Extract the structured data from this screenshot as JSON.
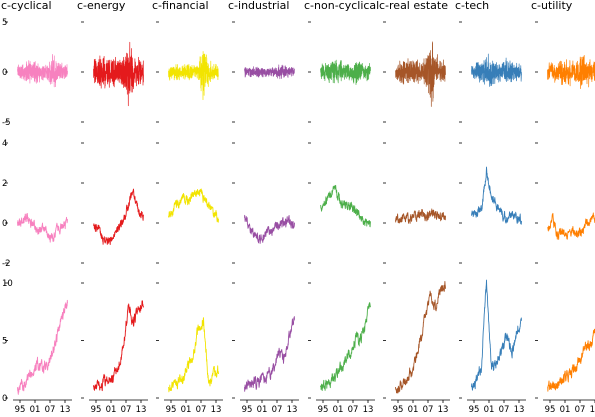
{
  "chart_data": {
    "type": "line",
    "grid": false,
    "legend": "none",
    "columns": [
      {
        "name": "c-cyclical",
        "color": "#f781bf"
      },
      {
        "name": "c-energy",
        "color": "#e41a1c"
      },
      {
        "name": "c-financial",
        "color": "#f2e400"
      },
      {
        "name": "c-industrial",
        "color": "#984ea3"
      },
      {
        "name": "c-non-cyclical",
        "color": "#4daf4a"
      },
      {
        "name": "c-real estate",
        "color": "#a65628"
      },
      {
        "name": "c-tech",
        "color": "#377eb8"
      },
      {
        "name": "c-utility",
        "color": "#ff7f00"
      }
    ],
    "rows": [
      {
        "ylim": [
          -5,
          5
        ],
        "yticks": [
          "5",
          "0",
          "-5"
        ]
      },
      {
        "ylim": [
          -2,
          4
        ],
        "yticks": [
          "4",
          "2",
          "0",
          "-2"
        ]
      },
      {
        "ylim": [
          0,
          10
        ],
        "yticks": [
          "10",
          "5",
          "0"
        ]
      }
    ],
    "xlim": [
      1993,
      2015
    ],
    "xticks": [
      "95",
      "01",
      "07",
      "13"
    ],
    "x": [
      1994,
      1996,
      1998,
      2000,
      2002,
      2004,
      2006,
      2008,
      2010,
      2012,
      2014
    ],
    "returns_amplitude": [
      [
        1.2,
        1.0,
        1.4,
        1.3,
        1.2,
        0.9,
        1.0,
        2.0,
        1.3,
        1.0,
        0.9
      ],
      [
        1.6,
        1.5,
        2.2,
        2.0,
        1.8,
        1.5,
        2.0,
        3.5,
        2.2,
        1.8,
        1.7
      ],
      [
        0.9,
        0.8,
        1.0,
        1.0,
        1.0,
        0.8,
        0.9,
        3.5,
        1.5,
        1.0,
        0.8
      ],
      [
        0.6,
        0.5,
        0.7,
        0.7,
        0.6,
        0.5,
        0.6,
        1.0,
        0.7,
        0.6,
        0.5
      ],
      [
        1.0,
        1.0,
        1.3,
        1.4,
        1.2,
        1.0,
        1.0,
        1.5,
        1.1,
        1.0,
        1.0
      ],
      [
        1.2,
        1.2,
        1.5,
        1.4,
        1.3,
        1.2,
        1.5,
        5.0,
        2.0,
        1.5,
        1.3
      ],
      [
        1.0,
        1.1,
        1.5,
        2.0,
        1.8,
        1.2,
        1.0,
        1.5,
        1.2,
        1.0,
        1.0
      ],
      [
        1.2,
        1.1,
        1.3,
        1.5,
        1.8,
        1.3,
        1.2,
        2.8,
        1.6,
        1.3,
        1.2
      ]
    ],
    "level": [
      [
        0.0,
        0.2,
        0.3,
        0.0,
        -0.4,
        -0.2,
        -0.5,
        -0.9,
        -0.3,
        -0.2,
        0.1
      ],
      [
        -0.2,
        -0.3,
        -0.9,
        -1.0,
        -0.6,
        -0.3,
        0.1,
        0.9,
        1.5,
        0.6,
        0.3
      ],
      [
        0.3,
        0.7,
        1.0,
        1.3,
        1.1,
        1.5,
        1.6,
        1.2,
        0.9,
        0.5,
        0.2
      ],
      [
        0.2,
        -0.2,
        -0.5,
        -0.8,
        -0.6,
        -0.4,
        -0.3,
        -0.1,
        0.0,
        0.0,
        0.0
      ],
      [
        0.8,
        1.1,
        1.5,
        1.6,
        1.0,
        0.9,
        0.8,
        0.6,
        0.3,
        0.1,
        0.0
      ],
      [
        0.1,
        0.2,
        0.3,
        0.2,
        0.3,
        0.5,
        0.3,
        0.5,
        0.4,
        0.3,
        0.4
      ],
      [
        0.3,
        0.5,
        0.7,
        2.6,
        1.2,
        0.9,
        0.5,
        0.2,
        0.4,
        0.3,
        0.1
      ],
      [
        -0.3,
        0.2,
        -0.6,
        -0.4,
        -0.6,
        -0.4,
        -0.6,
        -0.3,
        0.0,
        0.2,
        0.3
      ]
    ],
    "cumulative": [
      [
        0.8,
        1.0,
        1.5,
        2.2,
        3.0,
        2.5,
        2.8,
        4.0,
        5.5,
        7.0,
        8.5
      ],
      [
        0.8,
        1.0,
        1.3,
        1.5,
        1.8,
        3.0,
        4.5,
        8.0,
        6.5,
        7.5,
        8.5
      ],
      [
        0.8,
        1.2,
        1.5,
        2.0,
        3.0,
        4.0,
        6.0,
        6.5,
        1.5,
        2.0,
        2.5
      ],
      [
        0.8,
        1.0,
        1.2,
        1.5,
        1.7,
        2.0,
        2.8,
        4.0,
        3.5,
        5.5,
        7.0
      ],
      [
        0.8,
        1.0,
        1.5,
        2.0,
        2.5,
        3.5,
        4.0,
        5.0,
        5.0,
        6.5,
        8.5
      ],
      [
        0.8,
        1.0,
        1.5,
        2.2,
        3.2,
        5.0,
        7.0,
        9.0,
        8.0,
        9.5,
        9.8
      ],
      [
        0.8,
        1.5,
        3.0,
        10.0,
        2.5,
        3.0,
        4.0,
        5.5,
        4.0,
        5.5,
        7.0
      ],
      [
        0.8,
        1.0,
        1.2,
        1.5,
        2.0,
        2.5,
        3.0,
        4.0,
        4.5,
        5.0,
        6.0
      ]
    ]
  }
}
